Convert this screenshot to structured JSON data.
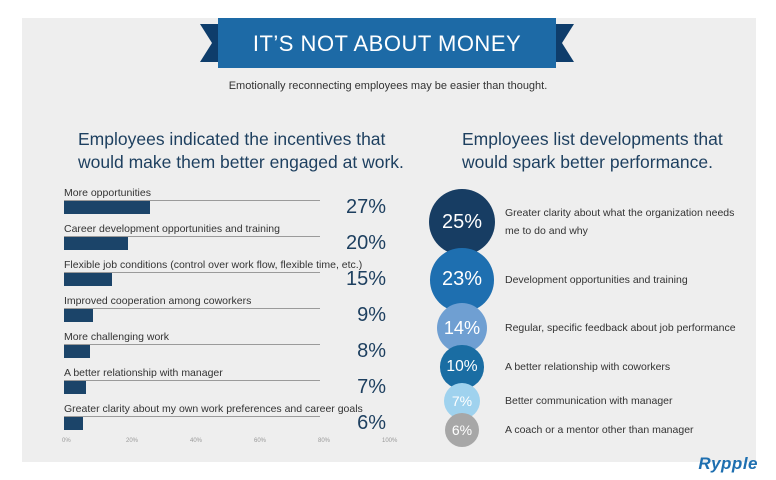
{
  "banner": {
    "title": "IT’S NOT ABOUT MONEY"
  },
  "subtitle": "Emotionally reconnecting employees may be easier than thought.",
  "logo": "Rypple",
  "chart_data": [
    {
      "type": "bar",
      "title": "Employees indicated the incentives that would make them better engaged at work.",
      "categories": [
        "More opportunities",
        "Career development opportunities and training",
        "Flexible job conditions (control over work flow, flexible time, etc.)",
        "Improved cooperation among coworkers",
        "More challenging work",
        "A better relationship with manager",
        "Greater clarity about my own work preferences and career goals"
      ],
      "values": [
        27,
        20,
        15,
        9,
        8,
        7,
        6
      ],
      "value_labels": [
        "27%",
        "20%",
        "15%",
        "9%",
        "8%",
        "7%",
        "6%"
      ],
      "xlim": [
        0,
        100
      ],
      "x_ticks": [
        "0%",
        "20%",
        "40%",
        "60%",
        "80%",
        "100%"
      ],
      "color": "#1b4469"
    },
    {
      "type": "bubble",
      "title": "Employees list developments that would spark better performance.",
      "categories": [
        "Greater clarity about what the organization needs me to do and why",
        "Development opportunities and training",
        "Regular, specific feedback about job performance",
        "A better relationship with coworkers",
        "Better communication with manager",
        "A coach or a mentor other than manager"
      ],
      "values": [
        25,
        23,
        14,
        10,
        7,
        6
      ],
      "value_labels": [
        "25%",
        "23%",
        "14%",
        "10%",
        "7%",
        "6%"
      ],
      "colors": [
        "#173d63",
        "#1e6fb0",
        "#6f9fd2",
        "#1a6da3",
        "#9fd2ee",
        "#a7a7a7"
      ]
    }
  ]
}
